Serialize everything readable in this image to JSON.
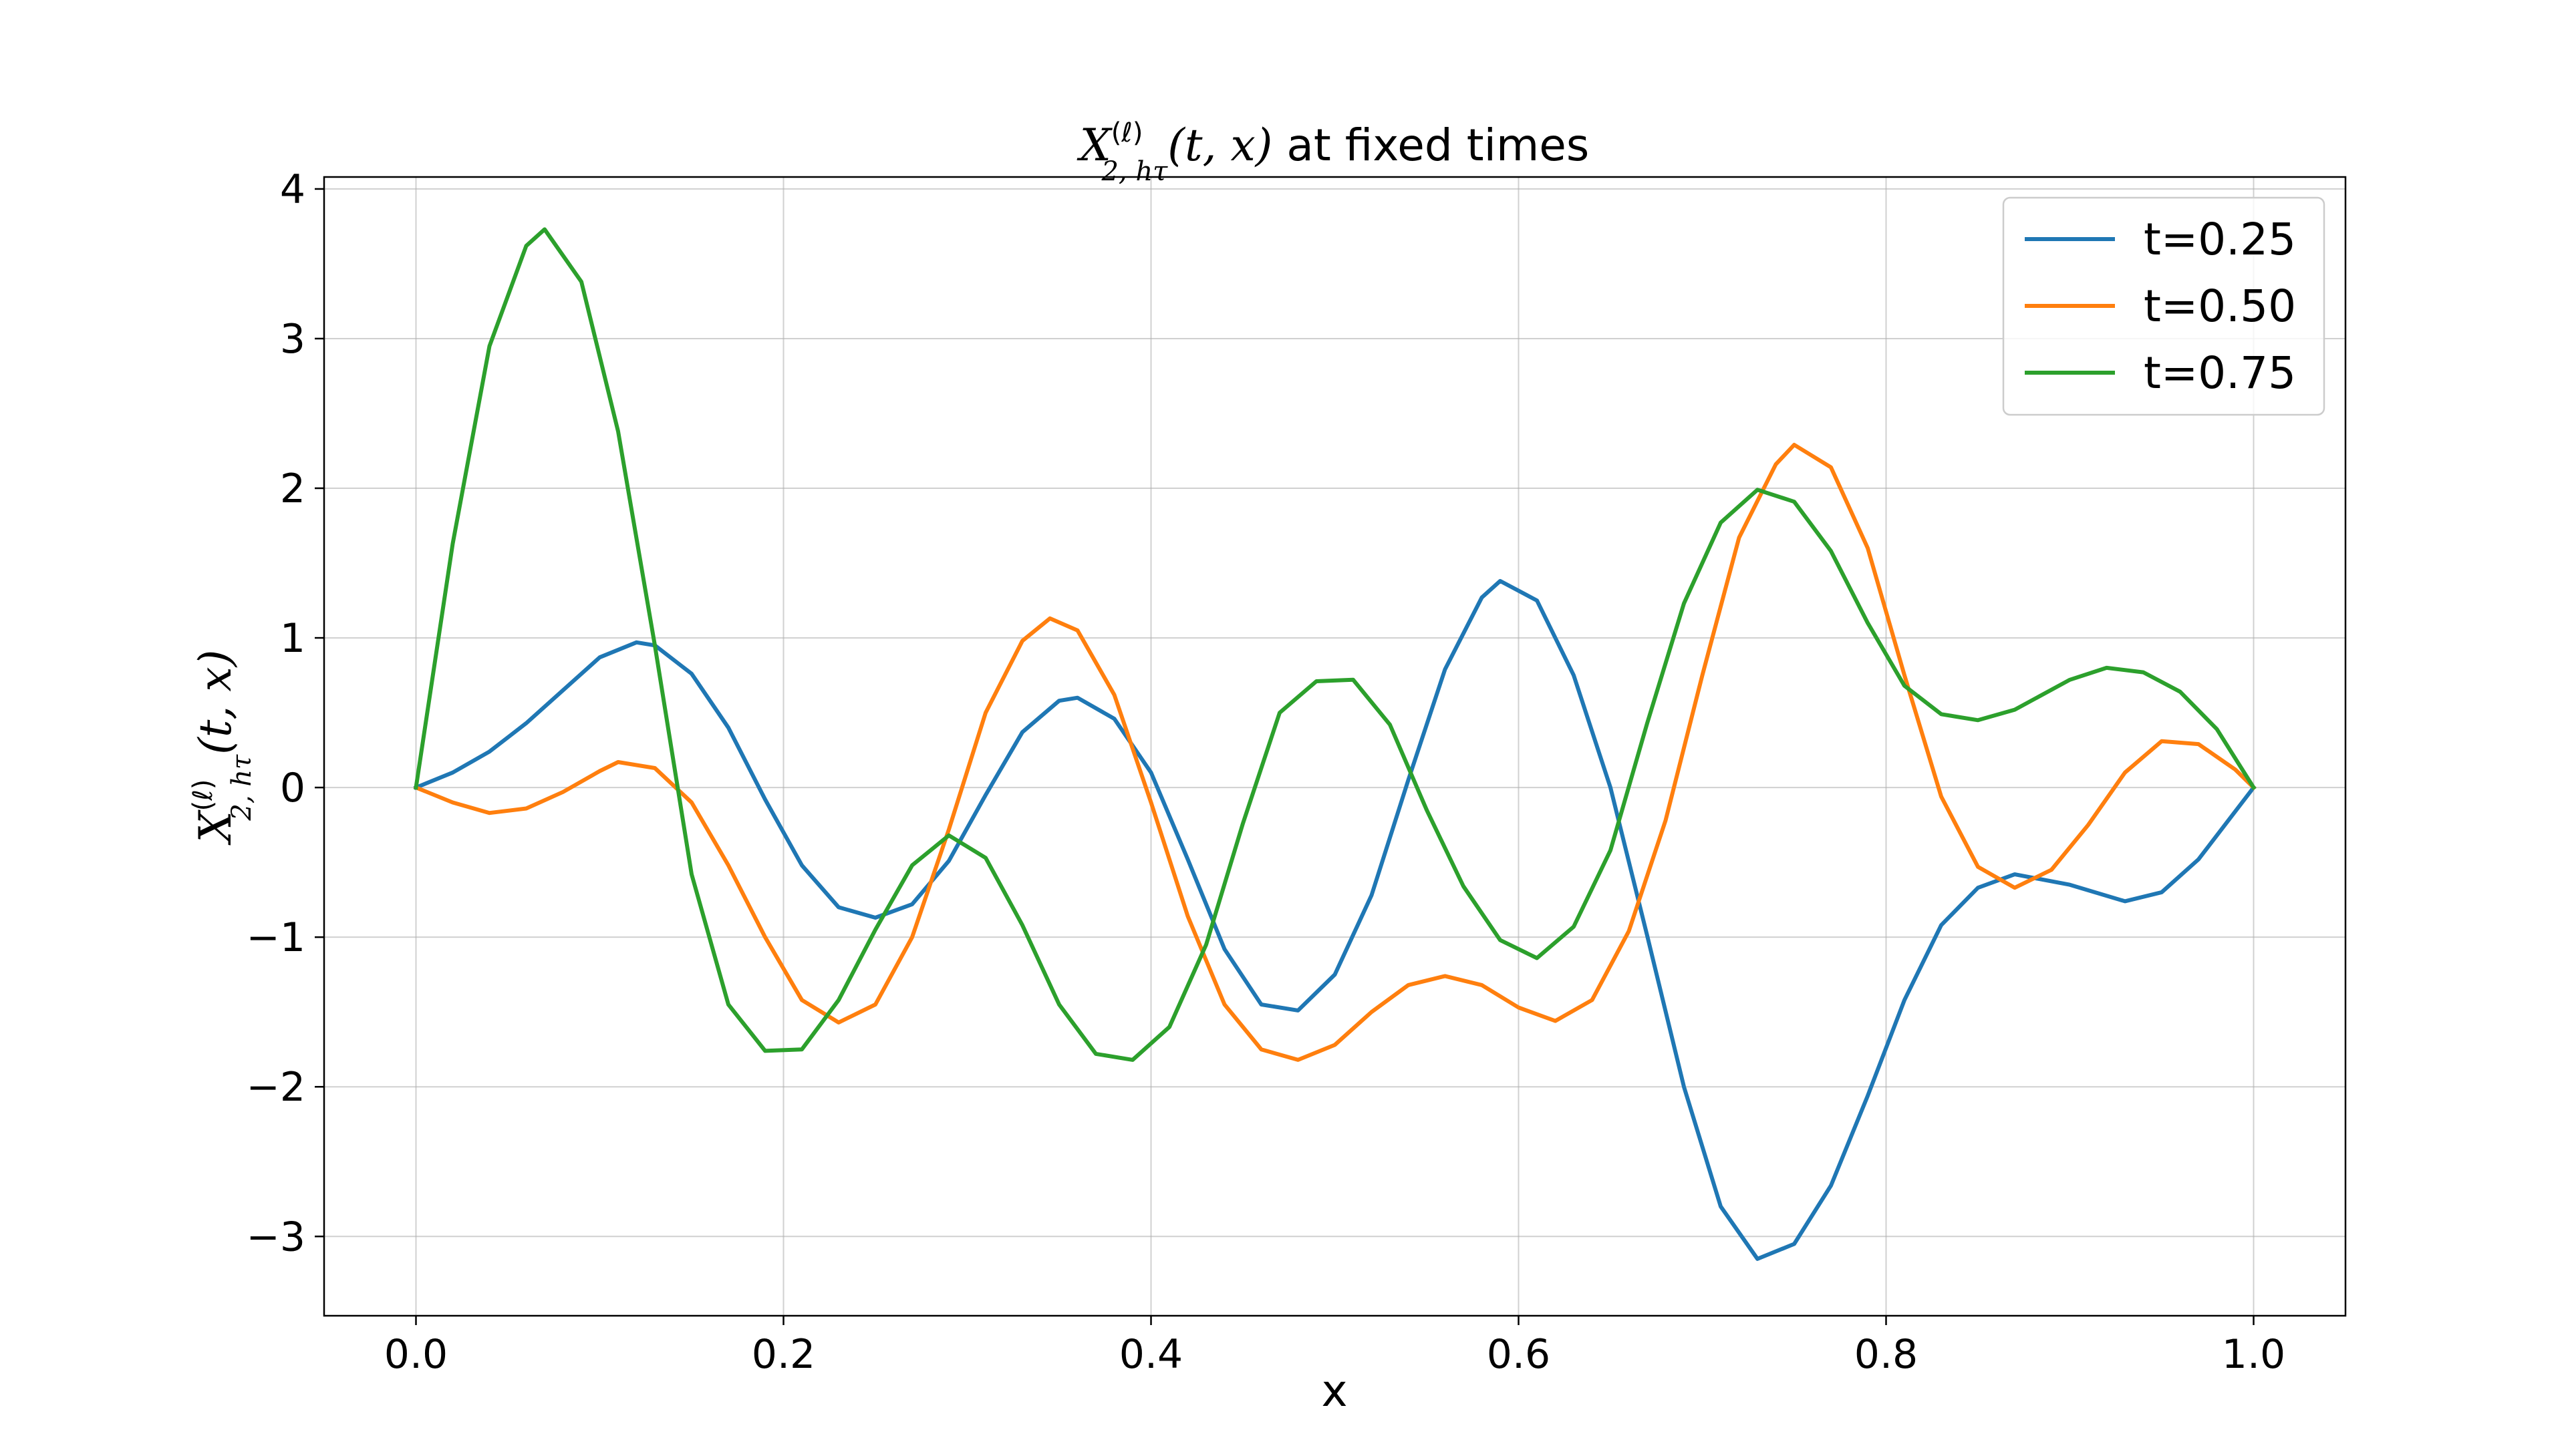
{
  "chart_data": {
    "type": "line",
    "title": {
      "symbol": "X",
      "superscript": "(ℓ)",
      "subscript": "2, hτ",
      "args": "(t, x)",
      "suffix": " at fixed times"
    },
    "xlabel": "x",
    "ylabel": {
      "symbol": "X",
      "superscript": "(ℓ)",
      "subscript": "2, hτ",
      "args": "(t, x)"
    },
    "xlim": [
      -0.05,
      1.05
    ],
    "ylim": [
      -3.53,
      4.08
    ],
    "xticks": [
      0.0,
      0.2,
      0.4,
      0.6,
      0.8,
      1.0
    ],
    "xtick_labels": [
      "0.0",
      "0.2",
      "0.4",
      "0.6",
      "0.8",
      "1.0"
    ],
    "yticks": [
      -3,
      -2,
      -1,
      0,
      1,
      2,
      3,
      4
    ],
    "ytick_labels": [
      "−3",
      "−2",
      "−1",
      "0",
      "1",
      "2",
      "3",
      "4"
    ],
    "grid": true,
    "legend_position": "top-right",
    "series": [
      {
        "name": "t=0.25",
        "color": "#1f77b4",
        "points": [
          [
            0.0,
            0.0
          ],
          [
            0.02,
            0.1
          ],
          [
            0.04,
            0.24
          ],
          [
            0.06,
            0.43
          ],
          [
            0.08,
            0.65
          ],
          [
            0.1,
            0.87
          ],
          [
            0.12,
            0.97
          ],
          [
            0.13,
            0.95
          ],
          [
            0.15,
            0.76
          ],
          [
            0.17,
            0.4
          ],
          [
            0.19,
            -0.08
          ],
          [
            0.21,
            -0.52
          ],
          [
            0.23,
            -0.8
          ],
          [
            0.25,
            -0.87
          ],
          [
            0.27,
            -0.78
          ],
          [
            0.29,
            -0.49
          ],
          [
            0.31,
            -0.05
          ],
          [
            0.33,
            0.37
          ],
          [
            0.35,
            0.58
          ],
          [
            0.36,
            0.6
          ],
          [
            0.38,
            0.46
          ],
          [
            0.4,
            0.1
          ],
          [
            0.42,
            -0.48
          ],
          [
            0.44,
            -1.08
          ],
          [
            0.46,
            -1.45
          ],
          [
            0.48,
            -1.49
          ],
          [
            0.5,
            -1.25
          ],
          [
            0.52,
            -0.72
          ],
          [
            0.54,
            0.05
          ],
          [
            0.56,
            0.79
          ],
          [
            0.58,
            1.27
          ],
          [
            0.59,
            1.38
          ],
          [
            0.61,
            1.25
          ],
          [
            0.63,
            0.75
          ],
          [
            0.65,
            0.0
          ],
          [
            0.67,
            -0.99
          ],
          [
            0.69,
            -2.0
          ],
          [
            0.71,
            -2.8
          ],
          [
            0.73,
            -3.15
          ],
          [
            0.75,
            -3.05
          ],
          [
            0.77,
            -2.66
          ],
          [
            0.79,
            -2.06
          ],
          [
            0.81,
            -1.42
          ],
          [
            0.83,
            -0.92
          ],
          [
            0.85,
            -0.67
          ],
          [
            0.87,
            -0.58
          ],
          [
            0.9,
            -0.65
          ],
          [
            0.93,
            -0.76
          ],
          [
            0.95,
            -0.7
          ],
          [
            0.97,
            -0.48
          ],
          [
            1.0,
            0.0
          ]
        ]
      },
      {
        "name": "t=0.50",
        "color": "#ff7f0e",
        "points": [
          [
            0.0,
            0.0
          ],
          [
            0.02,
            -0.1
          ],
          [
            0.04,
            -0.17
          ],
          [
            0.06,
            -0.14
          ],
          [
            0.08,
            -0.03
          ],
          [
            0.1,
            0.11
          ],
          [
            0.11,
            0.17
          ],
          [
            0.13,
            0.13
          ],
          [
            0.15,
            -0.1
          ],
          [
            0.17,
            -0.52
          ],
          [
            0.19,
            -1.0
          ],
          [
            0.21,
            -1.42
          ],
          [
            0.23,
            -1.57
          ],
          [
            0.25,
            -1.45
          ],
          [
            0.27,
            -1.0
          ],
          [
            0.29,
            -0.28
          ],
          [
            0.31,
            0.5
          ],
          [
            0.33,
            0.98
          ],
          [
            0.345,
            1.13
          ],
          [
            0.36,
            1.05
          ],
          [
            0.38,
            0.62
          ],
          [
            0.4,
            -0.1
          ],
          [
            0.42,
            -0.86
          ],
          [
            0.44,
            -1.45
          ],
          [
            0.46,
            -1.75
          ],
          [
            0.48,
            -1.82
          ],
          [
            0.5,
            -1.72
          ],
          [
            0.52,
            -1.5
          ],
          [
            0.54,
            -1.32
          ],
          [
            0.56,
            -1.26
          ],
          [
            0.58,
            -1.32
          ],
          [
            0.6,
            -1.47
          ],
          [
            0.62,
            -1.56
          ],
          [
            0.64,
            -1.42
          ],
          [
            0.66,
            -0.96
          ],
          [
            0.68,
            -0.22
          ],
          [
            0.7,
            0.75
          ],
          [
            0.72,
            1.67
          ],
          [
            0.74,
            2.16
          ],
          [
            0.75,
            2.29
          ],
          [
            0.77,
            2.14
          ],
          [
            0.79,
            1.6
          ],
          [
            0.81,
            0.75
          ],
          [
            0.83,
            -0.06
          ],
          [
            0.85,
            -0.53
          ],
          [
            0.87,
            -0.67
          ],
          [
            0.89,
            -0.55
          ],
          [
            0.91,
            -0.25
          ],
          [
            0.93,
            0.1
          ],
          [
            0.95,
            0.31
          ],
          [
            0.97,
            0.29
          ],
          [
            0.99,
            0.12
          ],
          [
            1.0,
            0.0
          ]
        ]
      },
      {
        "name": "t=0.75",
        "color": "#2ca02c",
        "points": [
          [
            0.0,
            0.0
          ],
          [
            0.02,
            1.63
          ],
          [
            0.04,
            2.95
          ],
          [
            0.06,
            3.62
          ],
          [
            0.07,
            3.73
          ],
          [
            0.09,
            3.38
          ],
          [
            0.11,
            2.38
          ],
          [
            0.13,
            0.95
          ],
          [
            0.15,
            -0.58
          ],
          [
            0.17,
            -1.45
          ],
          [
            0.19,
            -1.76
          ],
          [
            0.21,
            -1.75
          ],
          [
            0.23,
            -1.42
          ],
          [
            0.25,
            -0.95
          ],
          [
            0.27,
            -0.52
          ],
          [
            0.29,
            -0.32
          ],
          [
            0.31,
            -0.47
          ],
          [
            0.33,
            -0.92
          ],
          [
            0.35,
            -1.45
          ],
          [
            0.37,
            -1.78
          ],
          [
            0.39,
            -1.82
          ],
          [
            0.41,
            -1.6
          ],
          [
            0.43,
            -1.05
          ],
          [
            0.45,
            -0.24
          ],
          [
            0.47,
            0.5
          ],
          [
            0.49,
            0.71
          ],
          [
            0.51,
            0.72
          ],
          [
            0.53,
            0.42
          ],
          [
            0.55,
            -0.15
          ],
          [
            0.57,
            -0.66
          ],
          [
            0.59,
            -1.02
          ],
          [
            0.61,
            -1.14
          ],
          [
            0.63,
            -0.93
          ],
          [
            0.65,
            -0.42
          ],
          [
            0.67,
            0.43
          ],
          [
            0.69,
            1.23
          ],
          [
            0.71,
            1.77
          ],
          [
            0.73,
            1.99
          ],
          [
            0.75,
            1.91
          ],
          [
            0.77,
            1.58
          ],
          [
            0.79,
            1.1
          ],
          [
            0.81,
            0.68
          ],
          [
            0.83,
            0.49
          ],
          [
            0.85,
            0.45
          ],
          [
            0.87,
            0.52
          ],
          [
            0.9,
            0.72
          ],
          [
            0.92,
            0.8
          ],
          [
            0.94,
            0.77
          ],
          [
            0.96,
            0.64
          ],
          [
            0.98,
            0.39
          ],
          [
            1.0,
            0.0
          ]
        ]
      }
    ]
  }
}
